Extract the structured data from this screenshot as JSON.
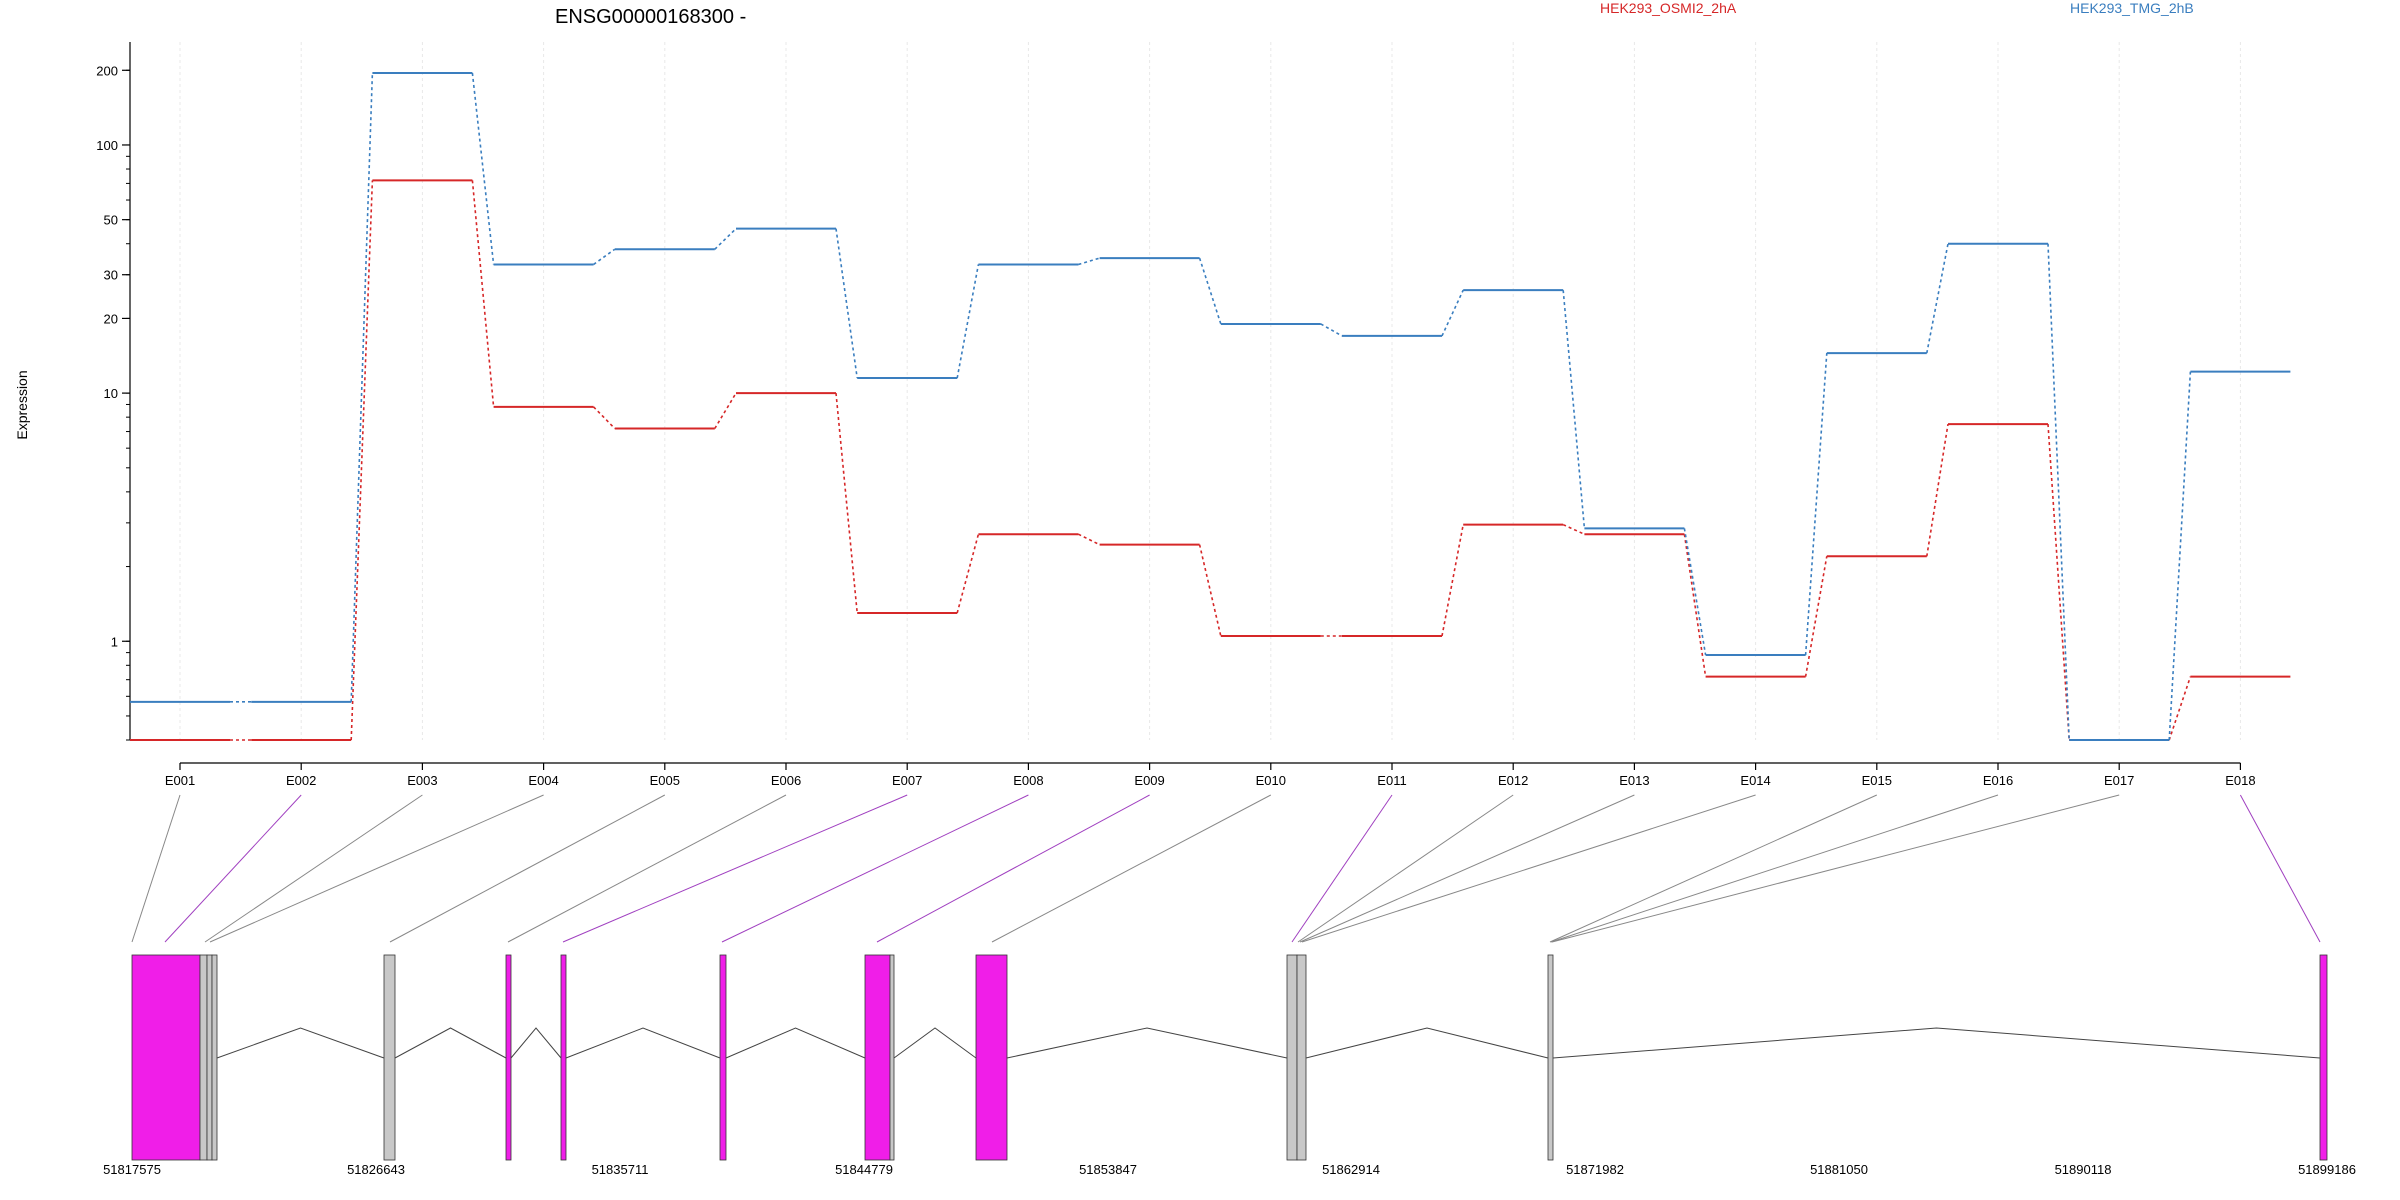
{
  "chart_data": {
    "type": "line",
    "title": "ENSG00000168300 -",
    "ylabel": "Expression",
    "y_scale": "log",
    "ylim": [
      0.4,
      260
    ],
    "y_ticks": [
      1,
      10,
      20,
      30,
      50,
      100,
      200
    ],
    "grid": true,
    "legend": "top",
    "categories": [
      "E001",
      "E002",
      "E003",
      "E004",
      "E005",
      "E006",
      "E007",
      "E008",
      "E009",
      "E010",
      "E011",
      "E012",
      "E013",
      "E014",
      "E015",
      "E016",
      "E017",
      "E018"
    ],
    "series": [
      {
        "name": "HEK293_OSMI2_2hA",
        "color": "#d62728",
        "values": [
          0.4,
          0.4,
          72,
          8.8,
          7.2,
          10,
          1.3,
          2.7,
          2.45,
          1.05,
          1.05,
          2.95,
          2.7,
          0.72,
          2.2,
          7.5,
          0.4,
          0.72
        ]
      },
      {
        "name": "HEK293_TMG_2hB",
        "color": "#3a7ebf",
        "values": [
          0.57,
          0.57,
          195,
          33,
          38,
          46,
          11.5,
          33,
          35,
          19,
          17,
          26,
          2.85,
          0.88,
          14.5,
          40,
          0.4,
          12.2
        ]
      }
    ],
    "gene_track": {
      "coordinate_ticks": [
        "51817575",
        "51826643",
        "51835711",
        "51844779",
        "51853847",
        "51862914",
        "51871982",
        "51881050",
        "51890118",
        "51899186"
      ],
      "exon_color_highlight": "#f01ee8",
      "exon_color_normal": "#c8c8c8"
    }
  }
}
